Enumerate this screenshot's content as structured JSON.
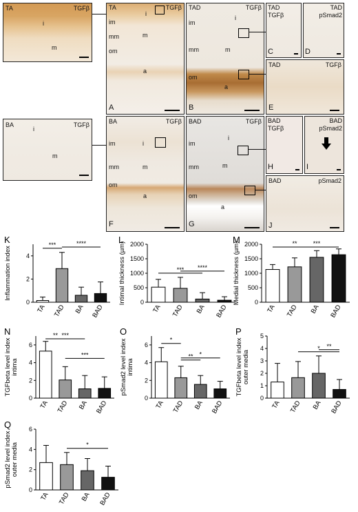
{
  "micro": {
    "inset_ta": {
      "labels": {
        "tissue": "TA",
        "stain": "TGFβ",
        "i": "i",
        "m": "m"
      }
    },
    "inset_ba": {
      "labels": {
        "tissue": "BA",
        "stain": "TGFβ",
        "i": "i",
        "m": "m"
      }
    },
    "A": {
      "letter": "A",
      "tissue": "TA",
      "stain": "TGFβ",
      "i": "i",
      "im": "im",
      "mm": "mm",
      "m": "m",
      "om": "om",
      "a": "a"
    },
    "B": {
      "letter": "B",
      "tissue": "TAD",
      "stain": "TGFβ",
      "i": "i",
      "im": "im",
      "mm": "mm",
      "m": "m",
      "om": "om",
      "a": "a"
    },
    "C": {
      "letter": "C",
      "tissue": "TAD",
      "stain": "TGFβ"
    },
    "D": {
      "letter": "D",
      "tissue": "TAD",
      "stain": "pSmad2"
    },
    "E": {
      "letter": "E",
      "tissue": "TAD",
      "stain": "TGFβ"
    },
    "F": {
      "letter": "F",
      "tissue": "BA",
      "stain": "TGFβ",
      "i": "i",
      "im": "im",
      "mm": "mm",
      "m": "m",
      "om": "om",
      "a": "a"
    },
    "G": {
      "letter": "G",
      "tissue": "BAD",
      "stain": "TGFβ",
      "i": "i",
      "im": "im",
      "mm": "mm",
      "m": "m",
      "om": "om",
      "a": "a"
    },
    "H": {
      "letter": "H",
      "tissue": "BAD",
      "stain": "TGFβ"
    },
    "I": {
      "letter": "I",
      "tissue": "BAD",
      "stain": "pSmad2"
    },
    "J": {
      "letter": "J",
      "tissue": "BAD",
      "stain": "pSmad2"
    }
  },
  "chart_data": [
    {
      "panel": "K",
      "type": "bar",
      "ylabel": "Inflammation index",
      "categories": [
        "TA",
        "TAD",
        "BA",
        "BAD"
      ],
      "values": [
        0.15,
        2.9,
        0.6,
        0.75
      ],
      "errors": [
        0.3,
        1.4,
        0.7,
        1.0
      ],
      "ylim": [
        0,
        5
      ],
      "yticks": [
        "0",
        "2",
        "4"
      ],
      "colors": [
        "#ffffff",
        "#999999",
        "#666666",
        "#111111"
      ],
      "sig": [
        {
          "from": 0,
          "to": 1,
          "text": "***"
        },
        {
          "from": 1,
          "to": 3,
          "text": "****"
        }
      ]
    },
    {
      "panel": "L",
      "type": "bar",
      "ylabel": "Intimal thickness (µm)",
      "categories": [
        "TA",
        "TAD",
        "BA",
        "BAD"
      ],
      "values": [
        520,
        480,
        110,
        70
      ],
      "errors": [
        270,
        380,
        220,
        120
      ],
      "ylim": [
        0,
        2000
      ],
      "yticks": [
        "0",
        "500",
        "1000",
        "1500",
        "2000"
      ],
      "colors": [
        "#ffffff",
        "#999999",
        "#666666",
        "#111111"
      ],
      "sig": [
        {
          "from": 0,
          "to": 2,
          "text": "***"
        },
        {
          "from": 1,
          "to": 3,
          "text": "****"
        }
      ]
    },
    {
      "panel": "M",
      "type": "bar",
      "ylabel": "Medial thickness (µm)",
      "categories": [
        "TA",
        "TAD",
        "BA",
        "BAD"
      ],
      "values": [
        1130,
        1220,
        1550,
        1640
      ],
      "errors": [
        170,
        310,
        230,
        200
      ],
      "ylim": [
        0,
        2000
      ],
      "yticks": [
        "0",
        "500",
        "1000",
        "1500",
        "2000"
      ],
      "colors": [
        "#ffffff",
        "#999999",
        "#666666",
        "#111111"
      ],
      "sig": [
        {
          "from": 0,
          "to": 2,
          "text": "**"
        },
        {
          "from": 1,
          "to": 3,
          "text": "***"
        }
      ]
    },
    {
      "panel": "N",
      "type": "bar",
      "ylabel": "TGFbeta level index intima",
      "categories": [
        "TA",
        "TAD",
        "BA",
        "BAD"
      ],
      "values": [
        5.3,
        2.05,
        1.05,
        1.1
      ],
      "errors": [
        1.1,
        1.5,
        1.5,
        1.3
      ],
      "ylim": [
        0,
        7
      ],
      "yticks": [
        "0",
        "2",
        "4",
        "6"
      ],
      "colors": [
        "#ffffff",
        "#999999",
        "#666666",
        "#111111"
      ],
      "sig": [
        {
          "from": 0,
          "to": 1,
          "text": "**"
        },
        {
          "from": 0,
          "to": 2,
          "text": "***"
        },
        {
          "from": 1,
          "to": 3,
          "text": "***"
        }
      ]
    },
    {
      "panel": "O",
      "type": "bar",
      "ylabel": "pSmad2 level index intima",
      "categories": [
        "TA",
        "TAD",
        "BA",
        "BAD"
      ],
      "values": [
        4.1,
        2.3,
        1.55,
        1.05
      ],
      "errors": [
        1.6,
        1.3,
        1.0,
        0.85
      ],
      "ylim": [
        0,
        7
      ],
      "yticks": [
        "0",
        "2",
        "4",
        "6"
      ],
      "colors": [
        "#ffffff",
        "#999999",
        "#666666",
        "#111111"
      ],
      "sig": [
        {
          "from": 0,
          "to": 1,
          "text": "*"
        },
        {
          "from": 1,
          "to": 2,
          "text": "**"
        },
        {
          "from": 1,
          "to": 3,
          "text": "*"
        }
      ]
    },
    {
      "panel": "P",
      "type": "bar",
      "ylabel": "TGFbeta level index outer media",
      "categories": [
        "TA",
        "TAD",
        "BA",
        "BAD"
      ],
      "values": [
        1.3,
        1.65,
        2.0,
        0.7
      ],
      "errors": [
        1.5,
        1.3,
        1.4,
        0.8
      ],
      "ylim": [
        0,
        5
      ],
      "yticks": [
        "0",
        "1",
        "2",
        "3",
        "4",
        "5"
      ],
      "colors": [
        "#ffffff",
        "#999999",
        "#666666",
        "#111111"
      ],
      "sig": [
        {
          "from": 1,
          "to": 3,
          "text": "*"
        },
        {
          "from": 2,
          "to": 3,
          "text": "**"
        }
      ]
    },
    {
      "panel": "Q",
      "type": "bar",
      "ylabel": "pSmad2 level index outer media",
      "categories": [
        "TA",
        "TAD",
        "BA",
        "BAD"
      ],
      "values": [
        2.7,
        2.5,
        1.9,
        1.25
      ],
      "errors": [
        1.7,
        1.2,
        1.2,
        1.1
      ],
      "ylim": [
        0,
        6
      ],
      "yticks": [
        "0",
        "2",
        "4",
        "6"
      ],
      "colors": [
        "#ffffff",
        "#999999",
        "#666666",
        "#111111"
      ],
      "sig": [
        {
          "from": 1,
          "to": 3,
          "text": "*"
        }
      ]
    }
  ]
}
